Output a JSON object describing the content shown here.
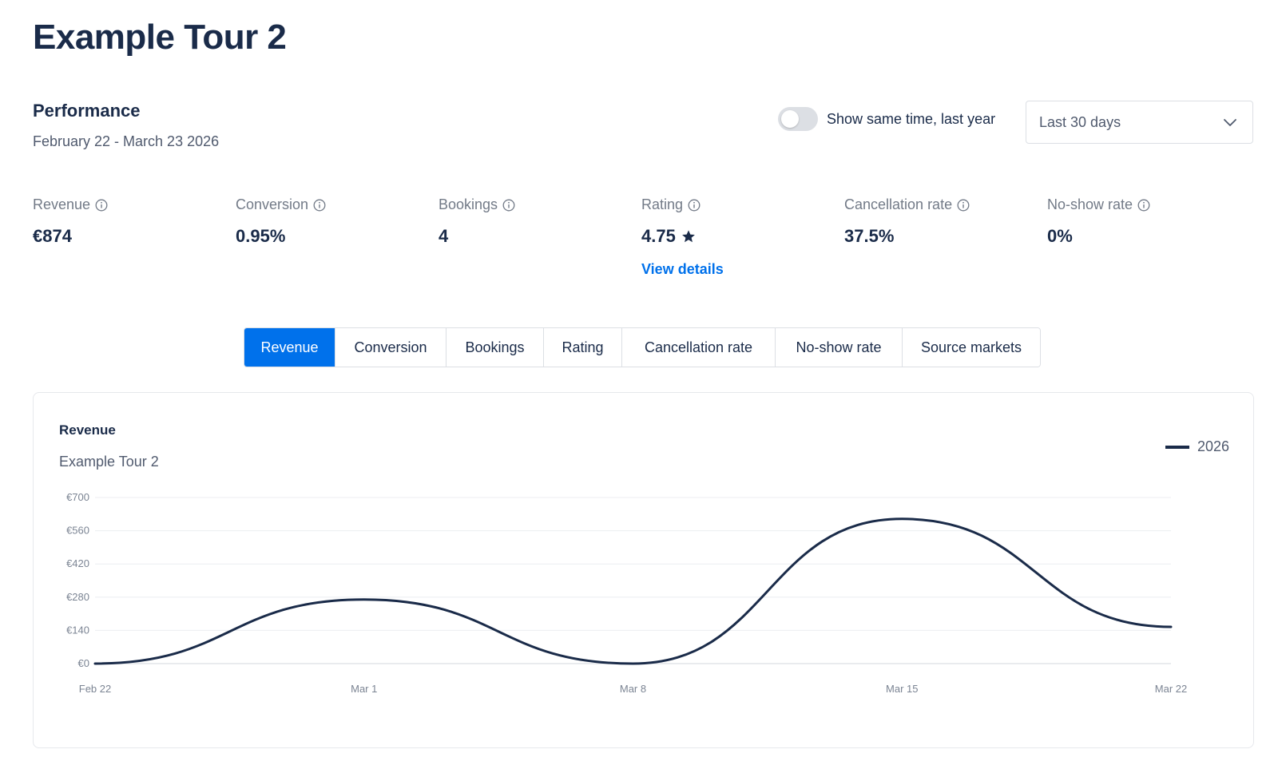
{
  "page": {
    "title": "Example Tour 2"
  },
  "performance": {
    "title": "Performance",
    "date_range": "February 22 - March 23 2026"
  },
  "controls": {
    "compare_label": "Show same time, last year",
    "compare_enabled": false,
    "period_select": "Last 30 days"
  },
  "metrics": [
    {
      "label": "Revenue",
      "value": "€874"
    },
    {
      "label": "Conversion",
      "value": "0.95%"
    },
    {
      "label": "Bookings",
      "value": "4"
    },
    {
      "label": "Rating",
      "value": "4.75",
      "link": "View details"
    },
    {
      "label": "Cancellation rate",
      "value": "37.5%"
    },
    {
      "label": "No-show rate",
      "value": "0%"
    }
  ],
  "tabs": [
    {
      "label": "Revenue",
      "active": true
    },
    {
      "label": "Conversion",
      "active": false
    },
    {
      "label": "Bookings",
      "active": false
    },
    {
      "label": "Rating",
      "active": false
    },
    {
      "label": "Cancellation rate",
      "active": false
    },
    {
      "label": "No-show rate",
      "active": false
    },
    {
      "label": "Source markets",
      "active": false
    }
  ],
  "chart": {
    "title": "Revenue",
    "subtitle": "Example Tour 2"
  },
  "colors": {
    "accent": "#0071eb",
    "text_dark": "#1a2b49",
    "line": "#1a2b49"
  },
  "chart_data": {
    "type": "line",
    "x": [
      "Feb 22",
      "Mar 1",
      "Mar 8",
      "Mar 15",
      "Mar 22"
    ],
    "series": [
      {
        "name": "2026",
        "values": [
          0,
          270,
          0,
          610,
          155
        ]
      }
    ],
    "yticks": [
      "€0",
      "€140",
      "€280",
      "€420",
      "€560",
      "€700"
    ],
    "ylim": [
      0,
      700
    ],
    "smooth": true,
    "grid": true,
    "legend": "top-right"
  }
}
